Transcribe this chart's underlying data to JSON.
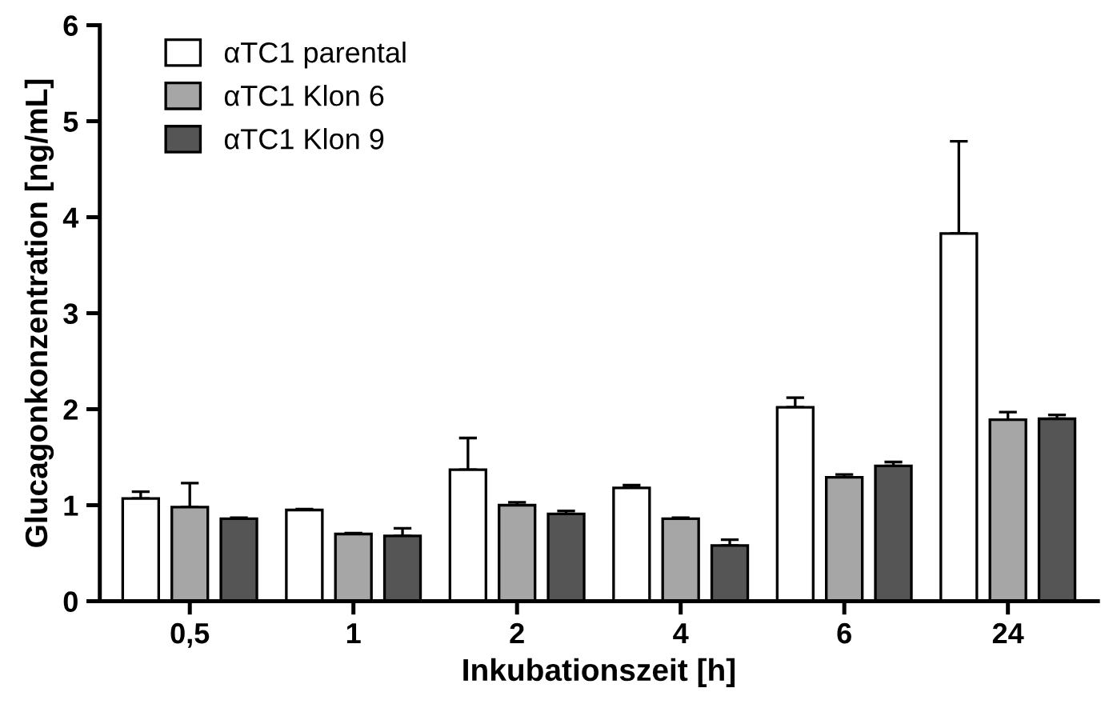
{
  "chart_data": {
    "type": "bar",
    "xlabel": "Inkubationszeit [h]",
    "ylabel": "Glucagonkonzentration [ng/mL]",
    "categories": [
      "0,5",
      "1",
      "2",
      "4",
      "6",
      "24"
    ],
    "series": [
      {
        "name": "αTC1 parental",
        "color": "#ffffff",
        "values": [
          1.07,
          0.95,
          1.37,
          1.18,
          2.02,
          3.83
        ],
        "errors": [
          [
            1.07,
            1.14
          ],
          [
            0.95,
            0.96
          ],
          [
            1.37,
            1.7
          ],
          [
            1.18,
            1.21
          ],
          [
            2.02,
            2.12
          ],
          [
            3.83,
            4.79
          ]
        ]
      },
      {
        "name": "αTC1 Klon 6",
        "color": "#a6a6a6",
        "values": [
          0.98,
          0.7,
          1.0,
          0.86,
          1.29,
          1.89
        ],
        "errors": [
          [
            0.98,
            1.23
          ],
          [
            0.7,
            0.71
          ],
          [
            1.0,
            1.03
          ],
          [
            0.86,
            0.87
          ],
          [
            1.29,
            1.32
          ],
          [
            1.89,
            1.97
          ]
        ]
      },
      {
        "name": "αTC1 Klon 9",
        "color": "#555555",
        "values": [
          0.86,
          0.68,
          0.91,
          0.58,
          1.41,
          1.9
        ],
        "errors": [
          [
            0.86,
            0.87
          ],
          [
            0.68,
            0.76
          ],
          [
            0.91,
            0.94
          ],
          [
            0.58,
            0.64
          ],
          [
            1.41,
            1.45
          ],
          [
            1.9,
            1.94
          ]
        ]
      }
    ],
    "ylim": [
      0,
      6
    ],
    "yticks": [
      0,
      1,
      2,
      3,
      4,
      5,
      6
    ],
    "legend": "top left",
    "grid": false
  }
}
